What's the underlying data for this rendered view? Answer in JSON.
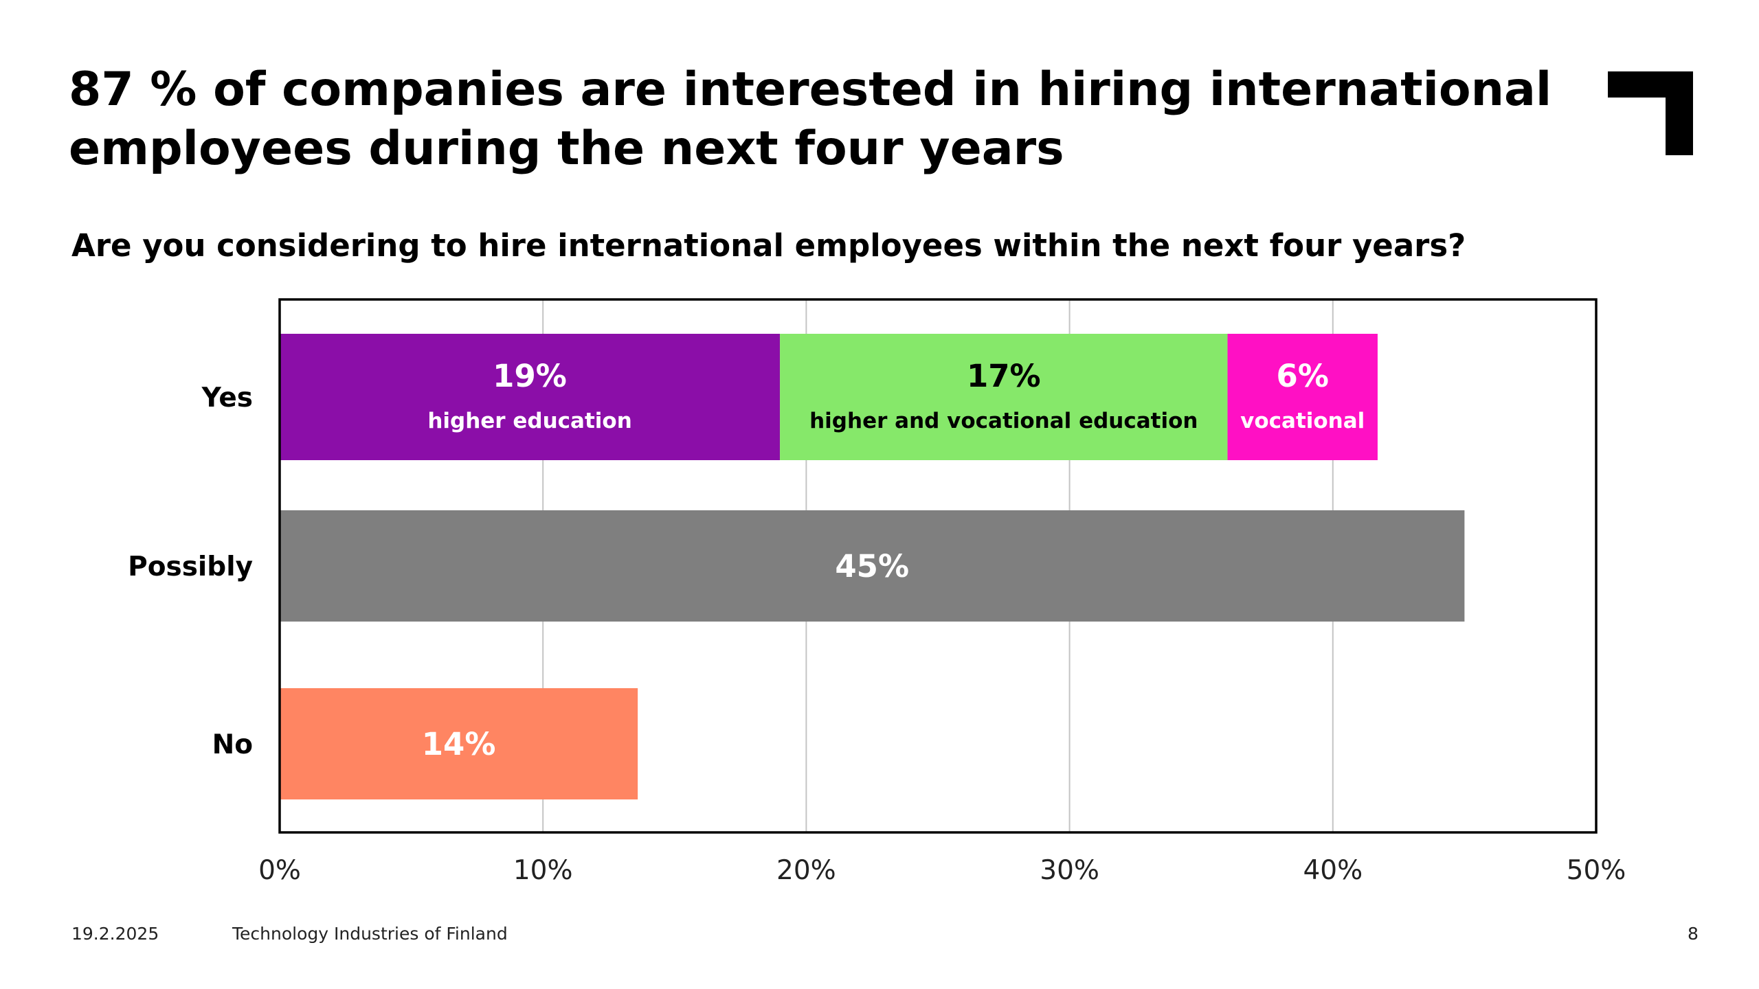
{
  "title": "87 % of companies are interested in hiring international employees during the next four years",
  "subtitle": "Are you considering to hire international employees within the next four years?",
  "footer": {
    "date": "19.2.2025",
    "organization": "Technology Industries of Finland",
    "page_number": "8"
  },
  "colors": {
    "higher_education": "#8B0EA8",
    "higher_and_vocational": "#86E86A",
    "vocational": "#FF10C4",
    "possibly": "#7F7F7F",
    "no": "#FF8562",
    "label_light": "#FFFFFF",
    "label_dark": "#000000"
  },
  "chart_data": {
    "type": "bar",
    "orientation": "horizontal",
    "stacked": true,
    "title": "Are you considering to hire international employees within the next four years?",
    "categories": [
      "Yes",
      "Possibly",
      "No"
    ],
    "series": [
      {
        "name": "higher education",
        "color": "#8B0EA8",
        "label_color": "#FFFFFF",
        "values": [
          19,
          null,
          null
        ],
        "labels": [
          "19%",
          "",
          ""
        ]
      },
      {
        "name": "higher and vocational education",
        "color": "#86E86A",
        "label_color": "#000000",
        "values": [
          17,
          null,
          null
        ],
        "labels": [
          "17%",
          "",
          ""
        ]
      },
      {
        "name": "vocational",
        "color": "#FF10C4",
        "label_color": "#FFFFFF",
        "values": [
          5.7,
          null,
          null
        ],
        "labels": [
          "6%",
          "",
          ""
        ]
      },
      {
        "name": "",
        "color": "#7F7F7F",
        "label_color": "#FFFFFF",
        "values": [
          null,
          45,
          null
        ],
        "labels": [
          "",
          "45%",
          ""
        ]
      },
      {
        "name": "",
        "color": "#FF8562",
        "label_color": "#FFFFFF",
        "values": [
          null,
          null,
          13.6
        ],
        "labels": [
          "",
          "",
          "14%"
        ]
      }
    ],
    "xlim": [
      0,
      50
    ],
    "x_ticks": [
      0,
      10,
      20,
      30,
      40,
      50
    ],
    "x_tick_labels": [
      "0%",
      "10%",
      "20%",
      "30%",
      "40%",
      "50%"
    ],
    "grid": true,
    "legend": "none"
  }
}
